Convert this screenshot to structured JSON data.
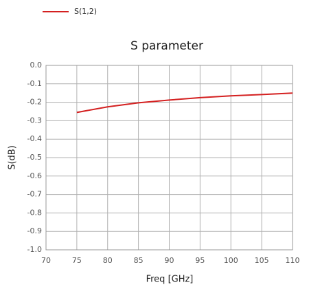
{
  "chart_data": {
    "type": "line",
    "title": "S parameter",
    "xlabel": "Freq [GHz]",
    "ylabel": "S(dB)",
    "x": [
      75,
      80,
      85,
      90,
      95,
      100,
      105,
      110
    ],
    "series": [
      {
        "name": "S(1,2)",
        "color": "#d42020",
        "values": [
          -0.255,
          -0.225,
          -0.203,
          -0.188,
          -0.175,
          -0.165,
          -0.158,
          -0.15
        ]
      }
    ],
    "xlim": [
      70,
      110
    ],
    "xticks": [
      70,
      75,
      80,
      85,
      90,
      95,
      100,
      105,
      110
    ],
    "ylim": [
      -1,
      0
    ],
    "yticks": [
      {
        "value": 0,
        "label": "0.0"
      },
      -0.1,
      -0.2,
      -0.3,
      -0.4,
      -0.5,
      -0.6,
      -0.7,
      -0.8,
      -0.9,
      {
        "value": -1,
        "label": "-1.0"
      }
    ],
    "grid": true,
    "legend": "top-left"
  }
}
